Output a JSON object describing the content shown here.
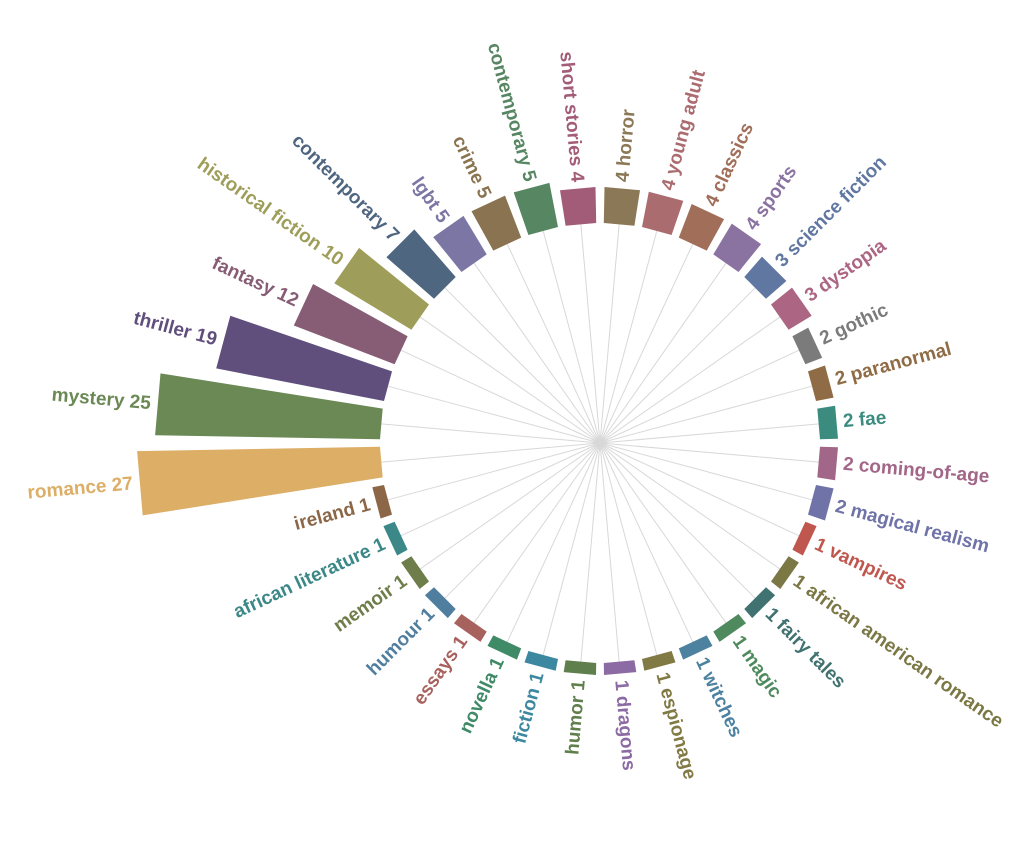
{
  "chart_data": {
    "type": "bar",
    "layout": "radial",
    "title": "",
    "bars": [
      {
        "label": "romance",
        "value": 27,
        "color": "#dcae66"
      },
      {
        "label": "mystery",
        "value": 25,
        "color": "#6a8955"
      },
      {
        "label": "thriller",
        "value": 19,
        "color": "#604f7c"
      },
      {
        "label": "fantasy",
        "value": 12,
        "color": "#875c75"
      },
      {
        "label": "historical fiction",
        "value": 10,
        "color": "#9e9e5a"
      },
      {
        "label": "contemporary",
        "value": 7,
        "color": "#4f6680"
      },
      {
        "label": "lgbt",
        "value": 5,
        "color": "#7b76a4"
      },
      {
        "label": "crime",
        "value": 5,
        "color": "#8a7350"
      },
      {
        "label": "contemporary",
        "value": 5,
        "color": "#568662"
      },
      {
        "label": "short stories",
        "value": 4,
        "color": "#a35c77"
      },
      {
        "label": "horror",
        "value": 4,
        "color": "#8b7856"
      },
      {
        "label": "young adult",
        "value": 4,
        "color": "#ab6c70"
      },
      {
        "label": "classics",
        "value": 4,
        "color": "#a06e59"
      },
      {
        "label": "sports",
        "value": 4,
        "color": "#8a72a1"
      },
      {
        "label": "science fiction",
        "value": 3,
        "color": "#6077a2"
      },
      {
        "label": "dystopia",
        "value": 3,
        "color": "#ac6684"
      },
      {
        "label": "gothic",
        "value": 2,
        "color": "#7b7b7b"
      },
      {
        "label": "paranormal",
        "value": 2,
        "color": "#8f6c45"
      },
      {
        "label": "fae",
        "value": 2,
        "color": "#3b8c7e"
      },
      {
        "label": "coming-of-age",
        "value": 2,
        "color": "#a26688"
      },
      {
        "label": "magical realism",
        "value": 2,
        "color": "#6f73a7"
      },
      {
        "label": "vampires",
        "value": 1,
        "color": "#c0574e"
      },
      {
        "label": "african american romance",
        "value": 1,
        "color": "#7b7845"
      },
      {
        "label": "fairy tales",
        "value": 1,
        "color": "#3f7270"
      },
      {
        "label": "magic",
        "value": 1,
        "color": "#4f8a5e"
      },
      {
        "label": "witches",
        "value": 1,
        "color": "#4c82a0"
      },
      {
        "label": "espionage",
        "value": 1,
        "color": "#827a45"
      },
      {
        "label": "dragons",
        "value": 1,
        "color": "#8c6aa3"
      },
      {
        "label": "humor",
        "value": 1,
        "color": "#5f7f4c"
      },
      {
        "label": "fiction",
        "value": 1,
        "color": "#3b88a0"
      },
      {
        "label": "novella",
        "value": 1,
        "color": "#3f8a67"
      },
      {
        "label": "essays",
        "value": 1,
        "color": "#a8625e"
      },
      {
        "label": "humour",
        "value": 1,
        "color": "#4f7e9f"
      },
      {
        "label": "memoir",
        "value": 1,
        "color": "#6e7d4a"
      },
      {
        "label": "african literature",
        "value": 1,
        "color": "#3c8787"
      },
      {
        "label": "ireland",
        "value": 1,
        "color": "#8c6747"
      }
    ]
  }
}
